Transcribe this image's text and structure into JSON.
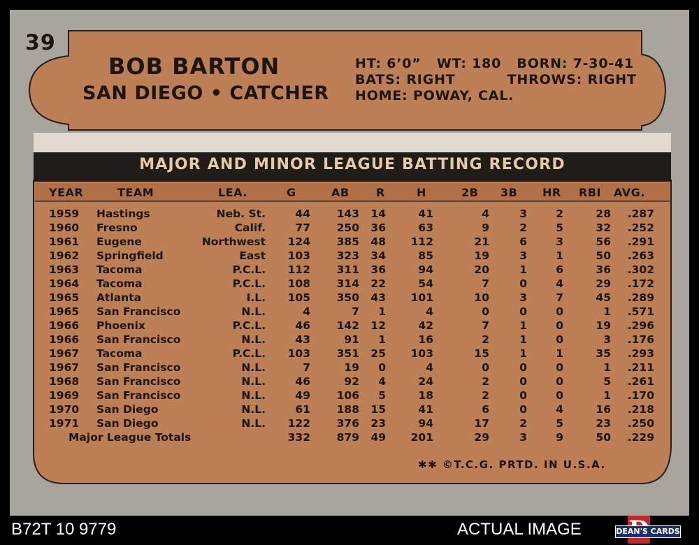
{
  "card": {
    "number": "39",
    "name": "BOB BARTON",
    "team_position": "SAN DIEGO • CATCHER",
    "bio_line1": "HT: 6’0”   WT: 180   BORN: 7-30-41",
    "bio_line2": "BATS: RIGHT          THROWS: RIGHT",
    "bio_line3": "HOME: POWAY, CAL.",
    "record_title": "MAJOR AND MINOR LEAGUE BATTING RECORD",
    "headers": {
      "year": "YEAR",
      "team": "TEAM",
      "lea": "LEA.",
      "g": "G",
      "ab": "AB",
      "r": "R",
      "h": "H",
      "2b": "2B",
      "3b": "3B",
      "hr": "HR",
      "rbi": "RBI",
      "avg": "AVG."
    },
    "rows": [
      [
        "1959",
        "Hastings",
        "Neb. St.",
        "44",
        "143",
        "14",
        "41",
        "4",
        "3",
        "2",
        "28",
        ".287"
      ],
      [
        "1960",
        "Fresno",
        "Calif.",
        "77",
        "250",
        "36",
        "63",
        "9",
        "2",
        "5",
        "32",
        ".252"
      ],
      [
        "1961",
        "Eugene",
        "Northwest",
        "124",
        "385",
        "48",
        "112",
        "21",
        "6",
        "3",
        "56",
        ".291"
      ],
      [
        "1962",
        "Springfield",
        "East",
        "103",
        "323",
        "34",
        "85",
        "19",
        "3",
        "1",
        "50",
        ".263"
      ],
      [
        "1963",
        "Tacoma",
        "P.C.L.",
        "112",
        "311",
        "36",
        "94",
        "20",
        "1",
        "6",
        "36",
        ".302"
      ],
      [
        "1964",
        "Tacoma",
        "P.C.L.",
        "108",
        "314",
        "22",
        "54",
        "7",
        "0",
        "4",
        "29",
        ".172"
      ],
      [
        "1965",
        "Atlanta",
        "I.L.",
        "105",
        "350",
        "43",
        "101",
        "10",
        "3",
        "7",
        "45",
        ".289"
      ],
      [
        "1965",
        "San Francisco",
        "N.L.",
        "4",
        "7",
        "1",
        "4",
        "0",
        "0",
        "0",
        "1",
        ".571"
      ],
      [
        "1966",
        "Phoenix",
        "P.C.L.",
        "46",
        "142",
        "12",
        "42",
        "7",
        "1",
        "0",
        "19",
        ".296"
      ],
      [
        "1966",
        "San Francisco",
        "N.L.",
        "43",
        "91",
        "1",
        "16",
        "2",
        "1",
        "0",
        "3",
        ".176"
      ],
      [
        "1967",
        "Tacoma",
        "P.C.L.",
        "103",
        "351",
        "25",
        "103",
        "15",
        "1",
        "1",
        "35",
        ".293"
      ],
      [
        "1967",
        "San Francisco",
        "N.L.",
        "7",
        "19",
        "0",
        "4",
        "0",
        "0",
        "0",
        "1",
        ".211"
      ],
      [
        "1968",
        "San Francisco",
        "N.L.",
        "46",
        "92",
        "4",
        "24",
        "2",
        "0",
        "0",
        "5",
        ".261"
      ],
      [
        "1969",
        "San Francisco",
        "N.L.",
        "49",
        "106",
        "5",
        "18",
        "2",
        "0",
        "0",
        "1",
        ".170"
      ],
      [
        "1970",
        "San Diego",
        "N.L.",
        "61",
        "188",
        "15",
        "41",
        "6",
        "0",
        "4",
        "16",
        ".218"
      ],
      [
        "1971",
        "San Diego",
        "N.L.",
        "122",
        "376",
        "23",
        "94",
        "17",
        "2",
        "5",
        "23",
        ".250"
      ]
    ],
    "totals": [
      "Major League Totals",
      "332",
      "879",
      "49",
      "201",
      "29",
      "3",
      "9",
      "50",
      ".229"
    ],
    "copyright": "✱✱ ©T.C.G. PRTD. IN U.S.A."
  },
  "footer": {
    "cert": "B72T 10 9779",
    "label": "ACTUAL IMAGE",
    "logo_letter": "D",
    "logo_text": "DEAN'S CARDS"
  },
  "colors": {
    "card_border": "#a8a59c",
    "orange": "#bd7f55",
    "dark": "#201c1a"
  }
}
